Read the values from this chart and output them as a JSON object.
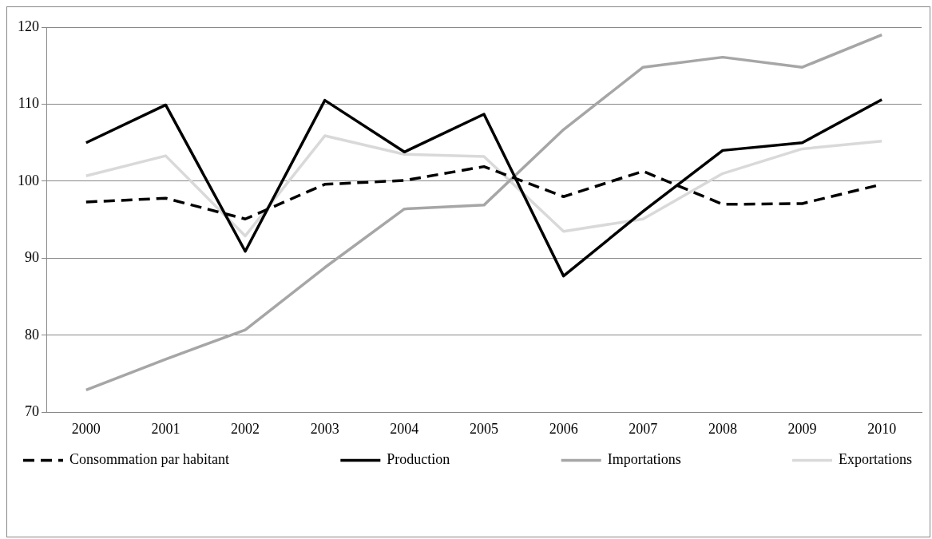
{
  "chart_data": {
    "type": "line",
    "categories": [
      "2000",
      "2001",
      "2002",
      "2003",
      "2004",
      "2005",
      "2006",
      "2007",
      "2008",
      "2009",
      "2010"
    ],
    "series": [
      {
        "name": "Consommation par habitant",
        "color": "#000000",
        "line_style": "dashed",
        "values": [
          97.3,
          97.8,
          95.1,
          99.6,
          100.1,
          101.9,
          98.0,
          101.3,
          97.0,
          97.1,
          99.6
        ]
      },
      {
        "name": "Production",
        "color": "#000000",
        "line_style": "solid",
        "values": [
          105.0,
          109.9,
          90.9,
          110.5,
          103.8,
          108.7,
          87.7,
          96.1,
          104.0,
          105.0,
          110.6
        ]
      },
      {
        "name": "Importations",
        "color": "#a6a6a6",
        "line_style": "solid",
        "values": [
          72.9,
          76.9,
          80.7,
          88.8,
          96.4,
          96.9,
          106.7,
          114.8,
          116.1,
          114.8,
          119.0
        ]
      },
      {
        "name": "Exportations",
        "color": "#d9d9d9",
        "line_style": "solid",
        "values": [
          100.7,
          103.3,
          92.9,
          105.9,
          103.5,
          103.2,
          93.5,
          95.1,
          101.0,
          104.2,
          105.2
        ]
      }
    ],
    "ylim": [
      70,
      120
    ],
    "yticks": [
      70,
      80,
      90,
      100,
      110,
      120
    ],
    "grid": "y",
    "legend": "bottom",
    "marker": "none"
  }
}
